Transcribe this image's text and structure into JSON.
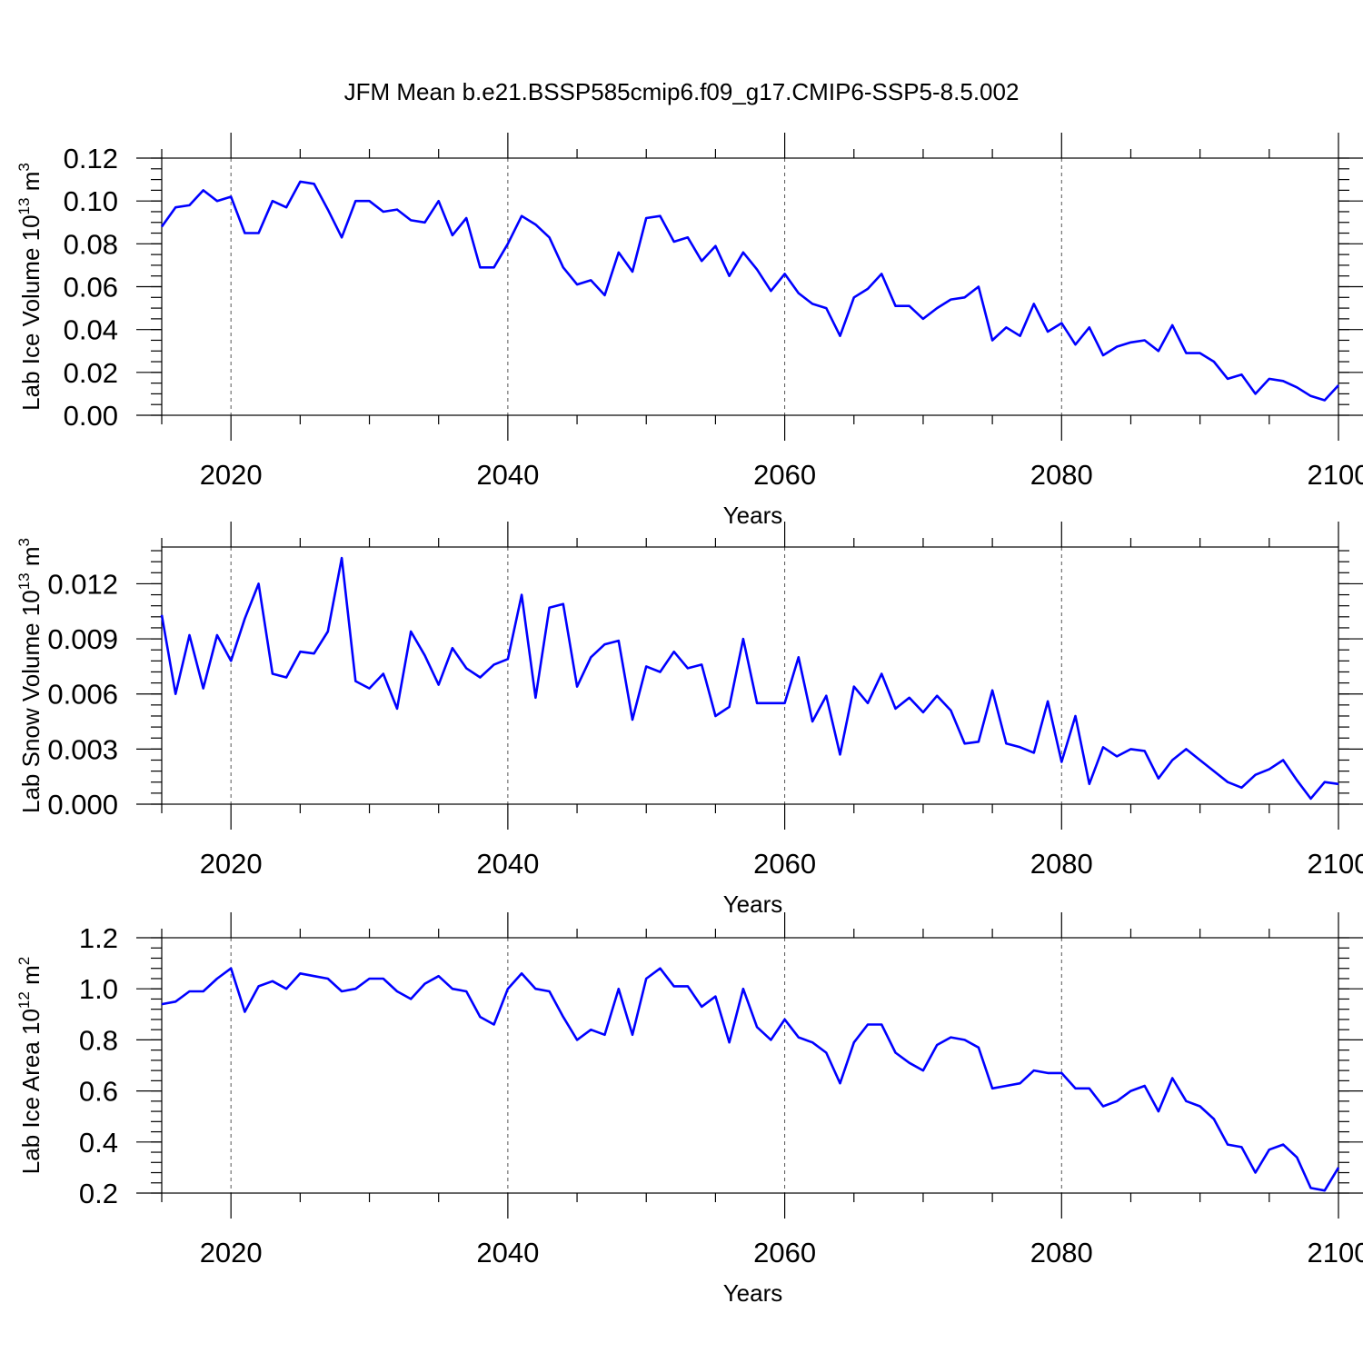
{
  "title": "JFM Mean b.e21.BSSP585cmip6.f09_g17.CMIP6-SSP5-8.5.002",
  "colors": {
    "series": "#0000ff",
    "axes": "#000000",
    "grid": "#555555"
  },
  "chart_data": [
    {
      "type": "line",
      "title": "",
      "xlabel": "Years",
      "ylabel": {
        "base": "Lab Ice Volume 10",
        "exp": "13",
        "unit": " m",
        "unit_exp": "3"
      },
      "xlim": [
        2015,
        2100
      ],
      "ylim": [
        0,
        0.12
      ],
      "xticks": [
        2020,
        2040,
        2060,
        2080,
        2100
      ],
      "xtick_labels": [
        "2020",
        "2040",
        "2060",
        "2080",
        "2100"
      ],
      "yticks": [
        0,
        0.02,
        0.04,
        0.06,
        0.08,
        0.1,
        0.12
      ],
      "ytick_labels": [
        "0.00",
        "0.02",
        "0.04",
        "0.06",
        "0.08",
        "0.10",
        "0.12"
      ],
      "grid_x": true,
      "x": [
        2015,
        2016,
        2017,
        2018,
        2019,
        2020,
        2021,
        2022,
        2023,
        2024,
        2025,
        2026,
        2027,
        2028,
        2029,
        2030,
        2031,
        2032,
        2033,
        2034,
        2035,
        2036,
        2037,
        2038,
        2039,
        2040,
        2041,
        2042,
        2043,
        2044,
        2045,
        2046,
        2047,
        2048,
        2049,
        2050,
        2051,
        2052,
        2053,
        2054,
        2055,
        2056,
        2057,
        2058,
        2059,
        2060,
        2061,
        2062,
        2063,
        2064,
        2065,
        2066,
        2067,
        2068,
        2069,
        2070,
        2071,
        2072,
        2073,
        2074,
        2075,
        2076,
        2077,
        2078,
        2079,
        2080,
        2081,
        2082,
        2083,
        2084,
        2085,
        2086,
        2087,
        2088,
        2089,
        2090,
        2091,
        2092,
        2093,
        2094,
        2095,
        2096,
        2097,
        2098,
        2099,
        2100
      ],
      "values": [
        0.088,
        0.097,
        0.098,
        0.105,
        0.1,
        0.102,
        0.085,
        0.085,
        0.1,
        0.097,
        0.109,
        0.108,
        0.096,
        0.083,
        0.1,
        0.1,
        0.095,
        0.096,
        0.091,
        0.09,
        0.1,
        0.084,
        0.092,
        0.069,
        0.069,
        0.08,
        0.093,
        0.089,
        0.083,
        0.069,
        0.061,
        0.063,
        0.056,
        0.076,
        0.067,
        0.092,
        0.093,
        0.081,
        0.083,
        0.072,
        0.079,
        0.065,
        0.076,
        0.068,
        0.058,
        0.066,
        0.057,
        0.052,
        0.05,
        0.037,
        0.055,
        0.059,
        0.066,
        0.051,
        0.051,
        0.045,
        0.05,
        0.054,
        0.055,
        0.06,
        0.035,
        0.041,
        0.037,
        0.052,
        0.039,
        0.043,
        0.033,
        0.041,
        0.028,
        0.032,
        0.034,
        0.035,
        0.03,
        0.042,
        0.029,
        0.029,
        0.025,
        0.017,
        0.019,
        0.01,
        0.017,
        0.016,
        0.013,
        0.009,
        0.007,
        0.014
      ]
    },
    {
      "type": "line",
      "title": "",
      "xlabel": "Years",
      "ylabel": {
        "base": "Lab Snow Volume 10",
        "exp": "13",
        "unit": " m",
        "unit_exp": "3"
      },
      "xlim": [
        2015,
        2100
      ],
      "ylim": [
        0,
        0.014
      ],
      "xticks": [
        2020,
        2040,
        2060,
        2080,
        2100
      ],
      "xtick_labels": [
        "2020",
        "2040",
        "2060",
        "2080",
        "2100"
      ],
      "yticks": [
        0,
        0.003,
        0.006,
        0.009,
        0.012
      ],
      "ytick_labels": [
        "0.000",
        "0.003",
        "0.006",
        "0.009",
        "0.012"
      ],
      "grid_x": true,
      "x": [
        2015,
        2016,
        2017,
        2018,
        2019,
        2020,
        2021,
        2022,
        2023,
        2024,
        2025,
        2026,
        2027,
        2028,
        2029,
        2030,
        2031,
        2032,
        2033,
        2034,
        2035,
        2036,
        2037,
        2038,
        2039,
        2040,
        2041,
        2042,
        2043,
        2044,
        2045,
        2046,
        2047,
        2048,
        2049,
        2050,
        2051,
        2052,
        2053,
        2054,
        2055,
        2056,
        2057,
        2058,
        2059,
        2060,
        2061,
        2062,
        2063,
        2064,
        2065,
        2066,
        2067,
        2068,
        2069,
        2070,
        2071,
        2072,
        2073,
        2074,
        2075,
        2076,
        2077,
        2078,
        2079,
        2080,
        2081,
        2082,
        2083,
        2084,
        2085,
        2086,
        2087,
        2088,
        2089,
        2090,
        2091,
        2092,
        2093,
        2094,
        2095,
        2096,
        2097,
        2098,
        2099,
        2100
      ],
      "values": [
        0.0103,
        0.006,
        0.0092,
        0.0063,
        0.0092,
        0.0078,
        0.0101,
        0.012,
        0.0071,
        0.0069,
        0.0083,
        0.0082,
        0.0094,
        0.0134,
        0.0067,
        0.0063,
        0.0071,
        0.0052,
        0.0094,
        0.0081,
        0.0065,
        0.0085,
        0.0074,
        0.0069,
        0.0076,
        0.0079,
        0.0114,
        0.0058,
        0.0107,
        0.0109,
        0.0064,
        0.008,
        0.0087,
        0.0089,
        0.0046,
        0.0075,
        0.0072,
        0.0083,
        0.0074,
        0.0076,
        0.0048,
        0.0053,
        0.009,
        0.0055,
        0.0055,
        0.0055,
        0.008,
        0.0045,
        0.0059,
        0.0027,
        0.0064,
        0.0055,
        0.0071,
        0.0052,
        0.0058,
        0.005,
        0.0059,
        0.0051,
        0.0033,
        0.0034,
        0.0062,
        0.0033,
        0.0031,
        0.0028,
        0.0056,
        0.0023,
        0.0048,
        0.0011,
        0.0031,
        0.0026,
        0.003,
        0.0029,
        0.0014,
        0.0024,
        0.003,
        0.0024,
        0.0018,
        0.0012,
        0.0009,
        0.0016,
        0.0019,
        0.0024,
        0.0013,
        0.0003,
        0.0012,
        0.0011
      ]
    },
    {
      "type": "line",
      "title": "",
      "xlabel": "Years",
      "ylabel": {
        "base": "Lab Ice Area 10",
        "exp": "12",
        "unit": " m",
        "unit_exp": "2"
      },
      "xlim": [
        2015,
        2100
      ],
      "ylim": [
        0.2,
        1.2
      ],
      "xticks": [
        2020,
        2040,
        2060,
        2080,
        2100
      ],
      "xtick_labels": [
        "2020",
        "2040",
        "2060",
        "2080",
        "2100"
      ],
      "yticks": [
        0.2,
        0.4,
        0.6,
        0.8,
        1.0,
        1.2
      ],
      "ytick_labels": [
        "0.2",
        "0.4",
        "0.6",
        "0.8",
        "1.0",
        "1.2"
      ],
      "grid_x": true,
      "x": [
        2015,
        2016,
        2017,
        2018,
        2019,
        2020,
        2021,
        2022,
        2023,
        2024,
        2025,
        2026,
        2027,
        2028,
        2029,
        2030,
        2031,
        2032,
        2033,
        2034,
        2035,
        2036,
        2037,
        2038,
        2039,
        2040,
        2041,
        2042,
        2043,
        2044,
        2045,
        2046,
        2047,
        2048,
        2049,
        2050,
        2051,
        2052,
        2053,
        2054,
        2055,
        2056,
        2057,
        2058,
        2059,
        2060,
        2061,
        2062,
        2063,
        2064,
        2065,
        2066,
        2067,
        2068,
        2069,
        2070,
        2071,
        2072,
        2073,
        2074,
        2075,
        2076,
        2077,
        2078,
        2079,
        2080,
        2081,
        2082,
        2083,
        2084,
        2085,
        2086,
        2087,
        2088,
        2089,
        2090,
        2091,
        2092,
        2093,
        2094,
        2095,
        2096,
        2097,
        2098,
        2099,
        2100
      ],
      "values": [
        0.94,
        0.95,
        0.99,
        0.99,
        1.04,
        1.08,
        0.91,
        1.01,
        1.03,
        1.0,
        1.06,
        1.05,
        1.04,
        0.99,
        1.0,
        1.04,
        1.04,
        0.99,
        0.96,
        1.02,
        1.05,
        1.0,
        0.99,
        0.89,
        0.86,
        1.0,
        1.06,
        1.0,
        0.99,
        0.89,
        0.8,
        0.84,
        0.82,
        1.0,
        0.82,
        1.04,
        1.08,
        1.01,
        1.01,
        0.93,
        0.97,
        0.79,
        1.0,
        0.85,
        0.8,
        0.88,
        0.81,
        0.79,
        0.75,
        0.63,
        0.79,
        0.86,
        0.86,
        0.75,
        0.71,
        0.68,
        0.78,
        0.81,
        0.8,
        0.77,
        0.61,
        0.62,
        0.63,
        0.68,
        0.67,
        0.67,
        0.61,
        0.61,
        0.54,
        0.56,
        0.6,
        0.62,
        0.52,
        0.65,
        0.56,
        0.54,
        0.49,
        0.39,
        0.38,
        0.28,
        0.37,
        0.39,
        0.34,
        0.22,
        0.21,
        0.3
      ]
    }
  ]
}
